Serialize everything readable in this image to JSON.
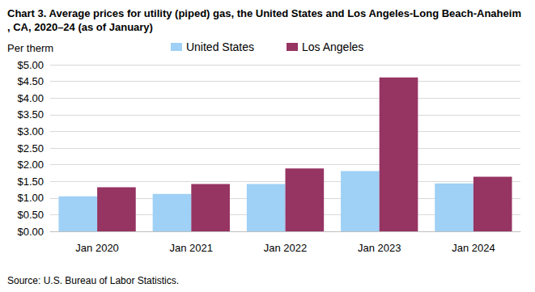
{
  "chart_data": {
    "type": "bar",
    "title": "Chart 3. Average prices for utility (piped) gas, the United States and Los Angeles-Long Beach-Anaheim, CA, 2020–24 (as of January)",
    "y_label": "Per therm",
    "source": "Source: U.S. Bureau of Labor Statistics.",
    "categories": [
      "Jan 2020",
      "Jan 2021",
      "Jan 2022",
      "Jan 2023",
      "Jan 2024"
    ],
    "series": [
      {
        "name": "United States",
        "color": "#9fd0f5",
        "values": [
          1.05,
          1.12,
          1.42,
          1.81,
          1.44
        ]
      },
      {
        "name": "Los Angeles",
        "color": "#963462",
        "values": [
          1.32,
          1.42,
          1.89,
          4.62,
          1.64
        ]
      }
    ],
    "ylim": [
      0,
      5
    ],
    "yticks": [
      {
        "value": 0,
        "label": "$0.00"
      },
      {
        "value": 0.5,
        "label": "$0.50"
      },
      {
        "value": 1,
        "label": "$1.00"
      },
      {
        "value": 1.5,
        "label": "$1.50"
      },
      {
        "value": 2,
        "label": "$2.00"
      },
      {
        "value": 2.5,
        "label": "$2.50"
      },
      {
        "value": 3,
        "label": "$3.00"
      },
      {
        "value": 3.5,
        "label": "$3.50"
      },
      {
        "value": 4,
        "label": "$4.00"
      },
      {
        "value": 4.5,
        "label": "$4.50"
      },
      {
        "value": 5,
        "label": "$5.00"
      }
    ],
    "grid": true,
    "legend": "top"
  }
}
